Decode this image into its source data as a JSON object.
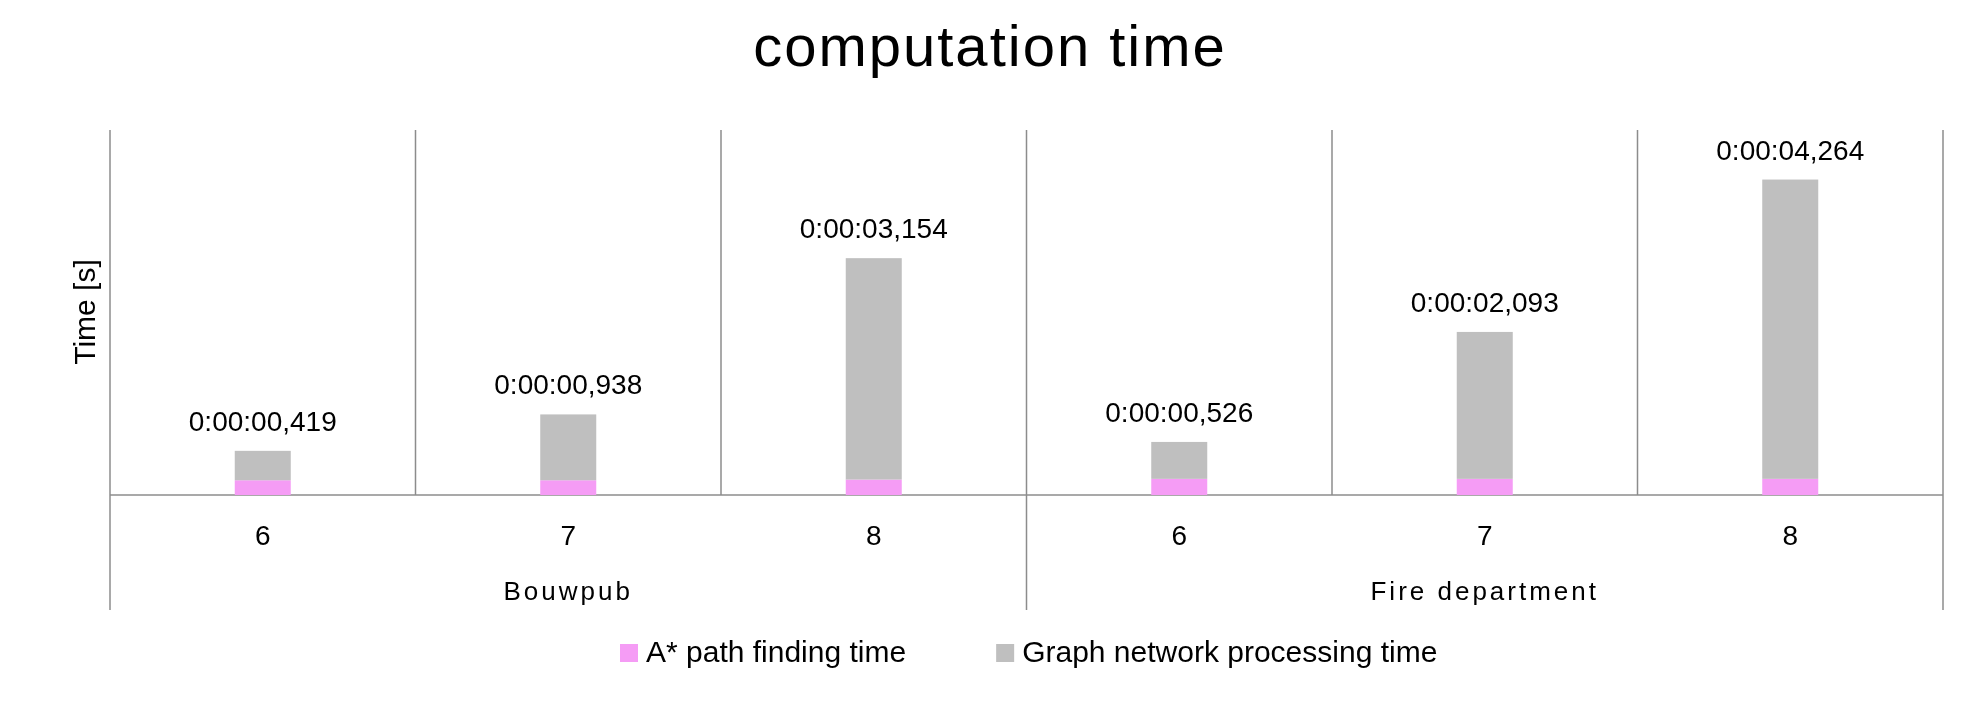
{
  "chart_data": {
    "type": "bar",
    "title": "computation time",
    "ylabel": "Time [s]",
    "stacked": true,
    "categories": [
      "6",
      "7",
      "8",
      "6",
      "7",
      "8"
    ],
    "series": [
      {
        "name": "A* path finding time",
        "color": "#f59cf5",
        "values": [
          0.21,
          0.21,
          0.22,
          0.23,
          0.23,
          0.23
        ]
      },
      {
        "name": "Graph network processing time",
        "color": "#bfbfbf",
        "values": [
          0.419,
          0.938,
          3.154,
          0.526,
          2.093,
          4.264
        ],
        "value_labels": [
          "0:00:00,419",
          "0:00:00,938",
          "0:00:03,154",
          "0:00:00,526",
          "0:00:02,093",
          "0:00:04,264"
        ]
      }
    ],
    "ylim": [
      0,
      5.2
    ],
    "annotations": [
      "Bouwpub",
      "Fire department"
    ],
    "legend": "bottom"
  }
}
